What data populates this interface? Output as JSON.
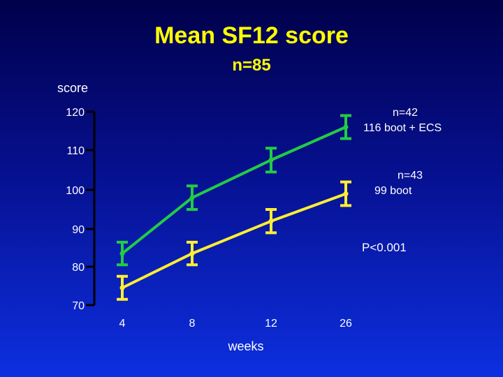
{
  "chart_data": {
    "type": "line",
    "title": "Mean SF12 score",
    "subtitle": "n=85",
    "ylabel": "score",
    "xlabel": "weeks",
    "categories": [
      "4",
      "8",
      "12",
      "26"
    ],
    "yticks": [
      "120",
      "110",
      "100",
      "90",
      "80",
      "70"
    ],
    "ylim": [
      70,
      120
    ],
    "grid": false,
    "series": [
      {
        "name": "boot + ECS",
        "values": [
          83.5,
          98,
          107.5,
          116
        ],
        "error": [
          3,
          3,
          3,
          3
        ],
        "color": "#22cc44",
        "label_n": "n=42",
        "label_end": "116  boot + ECS"
      },
      {
        "name": "boot",
        "values": [
          74.5,
          83.5,
          92,
          99
        ],
        "error": [
          3,
          3,
          3,
          3
        ],
        "color": "#ffee33",
        "label_n": "n=43",
        "label_end": "99  boot"
      }
    ],
    "annotation": "P<0.001"
  }
}
